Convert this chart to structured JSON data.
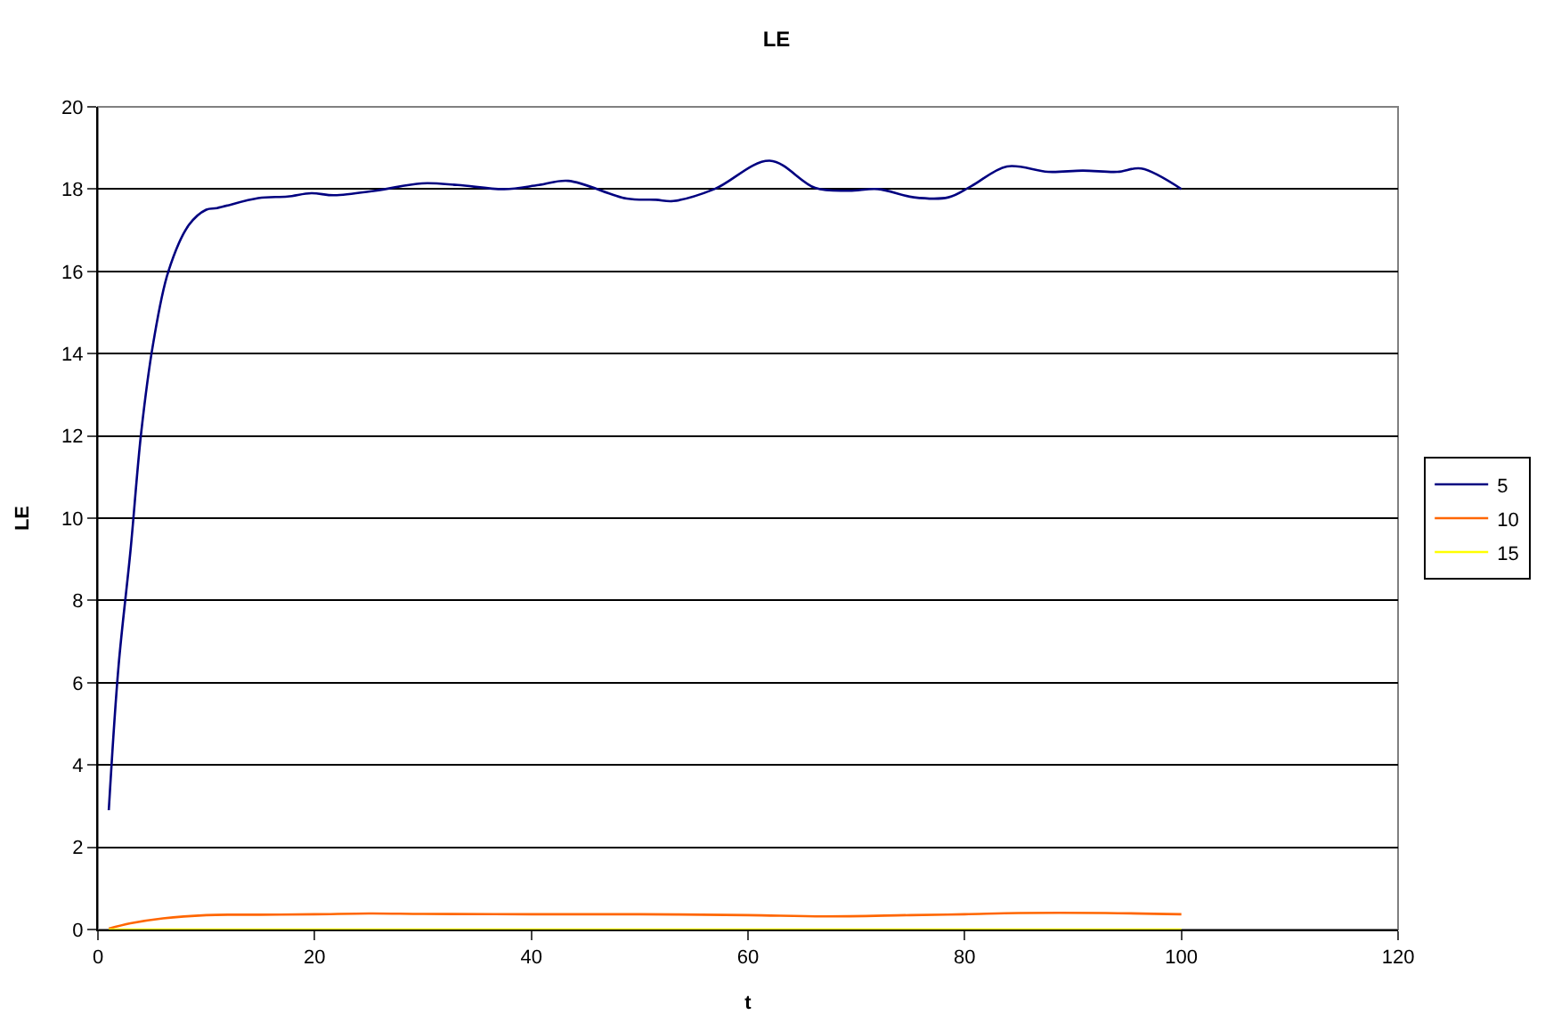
{
  "chart_data": {
    "type": "line",
    "title": "LE",
    "xlabel": "t",
    "ylabel": "LE",
    "xlim": [
      0,
      120
    ],
    "xticks": [
      0,
      20,
      40,
      60,
      80,
      100,
      120
    ],
    "ylim": [
      0,
      20
    ],
    "yticks": [
      0,
      2,
      4,
      6,
      8,
      10,
      12,
      14,
      16,
      18,
      20
    ],
    "grid": "y",
    "legend": "right",
    "marker": "none",
    "line_style": "solid",
    "series": [
      {
        "name": "5",
        "color": "#000080",
        "x": [
          1,
          1.9,
          3,
          4,
          5.1,
          6.5,
          8.4,
          10,
          11,
          14.8,
          17.5,
          19.7,
          21.8,
          25.6,
          29.9,
          33.2,
          37.5,
          40.7,
          43.4,
          48.8,
          51.5,
          53.1,
          56.9,
          62,
          66.2,
          69.3,
          72,
          75.3,
          78.5,
          80.6,
          83.9,
          87.7,
          90.9,
          94.1,
          96.3,
          100
        ],
        "values": [
          2.9,
          6.4,
          9.2,
          12.1,
          14.25,
          16.0,
          17.13,
          17.5,
          17.54,
          17.78,
          17.82,
          17.9,
          17.85,
          17.96,
          18.14,
          18.1,
          18.0,
          18.1,
          18.2,
          17.77,
          17.74,
          17.71,
          18.0,
          18.69,
          18.03,
          17.96,
          18.0,
          17.8,
          17.8,
          18.07,
          18.55,
          18.42,
          18.45,
          18.42,
          18.5,
          18.0
        ]
      },
      {
        "name": "10",
        "color": "#ff6600",
        "x": [
          1,
          3,
          6,
          10,
          15,
          20,
          25,
          30,
          40,
          50,
          60,
          67,
          75,
          80,
          85,
          93,
          100
        ],
        "values": [
          0.02,
          0.15,
          0.27,
          0.35,
          0.36,
          0.37,
          0.39,
          0.38,
          0.37,
          0.37,
          0.35,
          0.32,
          0.35,
          0.37,
          0.4,
          0.4,
          0.37
        ]
      },
      {
        "name": "15",
        "color": "#ffff00",
        "x": [
          1,
          100
        ],
        "values": [
          0.0,
          0.0
        ]
      }
    ]
  }
}
